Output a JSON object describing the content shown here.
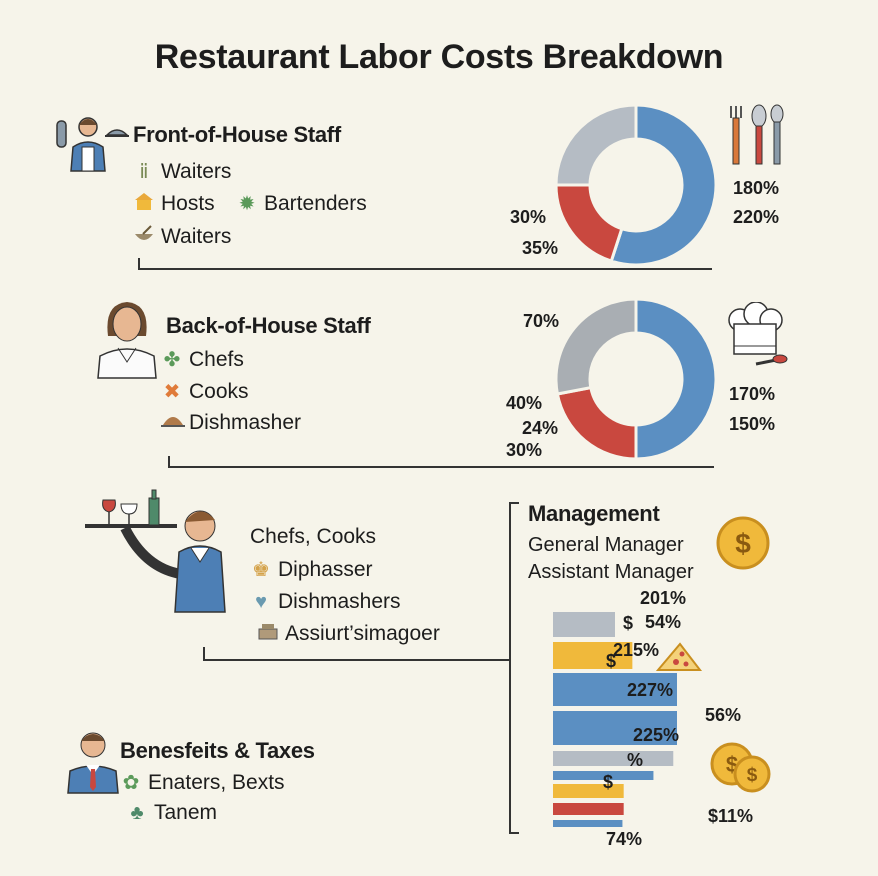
{
  "title": "Restaurant Labor Costs Breakdown",
  "colors": {
    "blue": "#5b8fc2",
    "red": "#c9483f",
    "grey": "#b5bcc4",
    "yellow": "#f0b93b",
    "bg": "#f6f4ea"
  },
  "front": {
    "title": "Front-of-House Staff",
    "items": [
      {
        "icon": "plant-icon",
        "label": "Waiters"
      },
      {
        "icon": "house-icon",
        "label": "Hosts"
      },
      {
        "icon": "virus-icon",
        "label": "Bartenders"
      },
      {
        "icon": "bowl-icon",
        "label": "Waiters"
      }
    ],
    "left_labels": [
      "30%",
      "35%"
    ],
    "right_labels": [
      "180%",
      "220%"
    ]
  },
  "back": {
    "title": "Back-of-House Staff",
    "items": [
      {
        "icon": "clover-icon",
        "label": "Chefs"
      },
      {
        "icon": "cross-icon",
        "label": "Cooks"
      },
      {
        "icon": "cloche-icon",
        "label": "Dishmasher"
      }
    ],
    "left_labels": [
      "70%",
      "40%",
      "24%",
      "30%"
    ],
    "right_labels": [
      "170%",
      "150%"
    ]
  },
  "middle": {
    "items": [
      {
        "icon": "",
        "label": "Chefs, Cooks"
      },
      {
        "icon": "crown-icon",
        "label": "Diphasser"
      },
      {
        "icon": "bulb-icon",
        "label": "Dishmashers"
      },
      {
        "icon": "register-icon",
        "label": "Assiurt’simagoer"
      }
    ]
  },
  "benefits": {
    "title": "Benesfeits & Taxes",
    "items": [
      {
        "icon": "leaf-icon",
        "label": "Enaters, Bexts"
      },
      {
        "icon": "people-icon",
        "label": "Tanem"
      }
    ]
  },
  "management": {
    "title": "Management",
    "roles": [
      "General Manager",
      "Assistant Manager"
    ],
    "labels": {
      "l201": "201%",
      "l54": "54%",
      "l215": "215%",
      "l227": "227%",
      "l56": "56%",
      "l225": "225%",
      "lpct": "%",
      "l11": "$11%",
      "l74": "74%",
      "dollar": "$"
    }
  },
  "chart_data": [
    {
      "type": "pie",
      "title": "Front-of-House Staff",
      "slices": [
        {
          "color": "#5b8fc2",
          "value": 55
        },
        {
          "color": "#c9483f",
          "value": 20
        },
        {
          "color": "#b5bcc4",
          "value": 25
        }
      ],
      "labels": [
        "30%",
        "35%",
        "180%",
        "220%"
      ]
    },
    {
      "type": "pie",
      "title": "Back-of-House Staff",
      "slices": [
        {
          "color": "#5b8fc2",
          "value": 50
        },
        {
          "color": "#c9483f",
          "value": 22
        },
        {
          "color": "#a9aeb3",
          "value": 28
        }
      ],
      "labels": [
        "70%",
        "40%",
        "24%",
        "30%",
        "170%",
        "150%"
      ]
    },
    {
      "type": "bar",
      "title": "Management",
      "bars": [
        {
          "color": "#b5bcc4",
          "value": 0.5
        },
        {
          "color": "#f0b93b",
          "value": 0.64
        },
        {
          "color": "#5b8fc2",
          "value": 1.0
        },
        {
          "color": "#5b8fc2",
          "value": 1.0
        },
        {
          "color": "#b5bcc4",
          "value": 0.97
        },
        {
          "color": "#5b8fc2",
          "value": 0.81
        },
        {
          "color": "#f0b93b",
          "value": 0.57
        },
        {
          "color": "#c9483f",
          "value": 0.57
        },
        {
          "color": "#5b8fc2",
          "value": 0.56
        }
      ]
    }
  ]
}
